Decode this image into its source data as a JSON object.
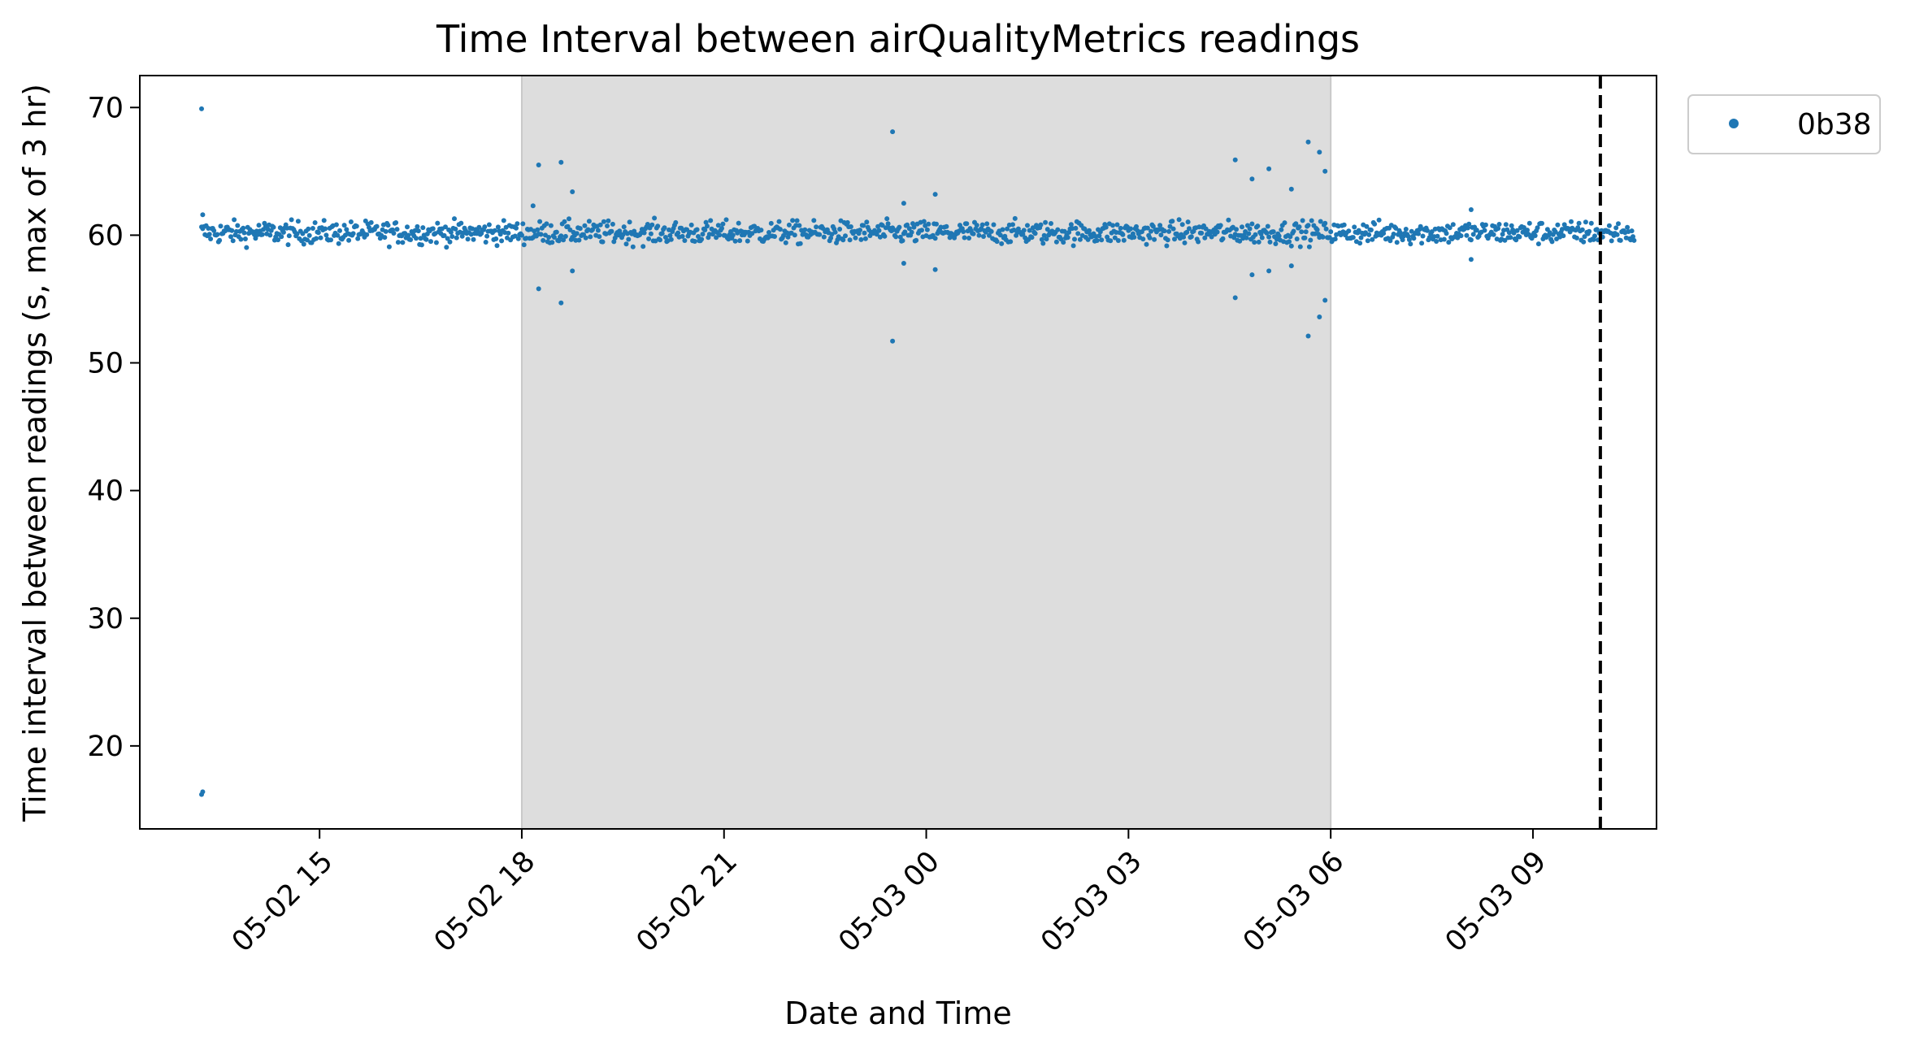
{
  "chart_data": {
    "type": "scatter",
    "title": "Time Interval between airQualityMetrics readings",
    "xlabel": "Date and Time",
    "ylabel": "Time interval between readings (s, max of 3 hr)",
    "x_range": [
      "2026-05-02T12:20",
      "2026-05-03T10:50"
    ],
    "ylim": [
      13.5,
      72.5
    ],
    "x_ticks": [
      {
        "value": "2026-05-02T15:00",
        "label": "05-02 15"
      },
      {
        "value": "2026-05-02T18:00",
        "label": "05-02 18"
      },
      {
        "value": "2026-05-02T21:00",
        "label": "05-02 21"
      },
      {
        "value": "2026-05-03T00:00",
        "label": "05-03 00"
      },
      {
        "value": "2026-05-03T03:00",
        "label": "05-03 03"
      },
      {
        "value": "2026-05-03T06:00",
        "label": "05-03 06"
      },
      {
        "value": "2026-05-03T09:00",
        "label": "05-03 09"
      }
    ],
    "y_ticks": [
      20,
      30,
      40,
      50,
      60,
      70
    ],
    "grid": false,
    "legend": {
      "placement": "outside-top-right",
      "entries": [
        "0b38"
      ]
    },
    "shaded_region": {
      "start": "2026-05-02T18:00",
      "end": "2026-05-03T06:00",
      "color": "#dddddd"
    },
    "vertical_line": {
      "x": "2026-05-03T10:00",
      "style": "dashed",
      "color": "#000000"
    },
    "series": [
      {
        "name": "0b38",
        "color": "#1f77b4",
        "baseline": {
          "start": "2026-05-02T13:15",
          "end": "2026-05-03T10:30",
          "interval_minutes": 1,
          "value": 60.2,
          "typical_spread": 0.8
        },
        "points": [
          {
            "x": "2026-05-02T13:15",
            "y": 69.9
          },
          {
            "x": "2026-05-02T13:15",
            "y": 16.2
          },
          {
            "x": "2026-05-02T13:16",
            "y": 16.4
          },
          {
            "x": "2026-05-02T13:16",
            "y": 61.6
          },
          {
            "x": "2026-05-02T18:15",
            "y": 65.5
          },
          {
            "x": "2026-05-02T18:35",
            "y": 65.7
          },
          {
            "x": "2026-05-02T18:15",
            "y": 55.8
          },
          {
            "x": "2026-05-02T18:35",
            "y": 54.7
          },
          {
            "x": "2026-05-02T18:45",
            "y": 63.4
          },
          {
            "x": "2026-05-02T18:45",
            "y": 57.2
          },
          {
            "x": "2026-05-02T18:10",
            "y": 62.3
          },
          {
            "x": "2026-05-02T23:30",
            "y": 68.1
          },
          {
            "x": "2026-05-02T23:30",
            "y": 51.7
          },
          {
            "x": "2026-05-02T23:40",
            "y": 62.5
          },
          {
            "x": "2026-05-02T23:40",
            "y": 57.8
          },
          {
            "x": "2026-05-03T00:08",
            "y": 63.2
          },
          {
            "x": "2026-05-03T00:08",
            "y": 57.3
          },
          {
            "x": "2026-05-03T04:35",
            "y": 65.9
          },
          {
            "x": "2026-05-03T04:35",
            "y": 55.1
          },
          {
            "x": "2026-05-03T04:50",
            "y": 64.4
          },
          {
            "x": "2026-05-03T04:50",
            "y": 56.9
          },
          {
            "x": "2026-05-03T05:05",
            "y": 65.2
          },
          {
            "x": "2026-05-03T05:05",
            "y": 57.2
          },
          {
            "x": "2026-05-03T05:25",
            "y": 63.6
          },
          {
            "x": "2026-05-03T05:25",
            "y": 57.6
          },
          {
            "x": "2026-05-03T05:40",
            "y": 67.3
          },
          {
            "x": "2026-05-03T05:40",
            "y": 52.1
          },
          {
            "x": "2026-05-03T05:50",
            "y": 66.5
          },
          {
            "x": "2026-05-03T05:50",
            "y": 53.6
          },
          {
            "x": "2026-05-03T05:55",
            "y": 65.0
          },
          {
            "x": "2026-05-03T05:55",
            "y": 54.9
          },
          {
            "x": "2026-05-03T08:05",
            "y": 62.0
          },
          {
            "x": "2026-05-03T08:05",
            "y": 58.1
          }
        ]
      }
    ]
  }
}
